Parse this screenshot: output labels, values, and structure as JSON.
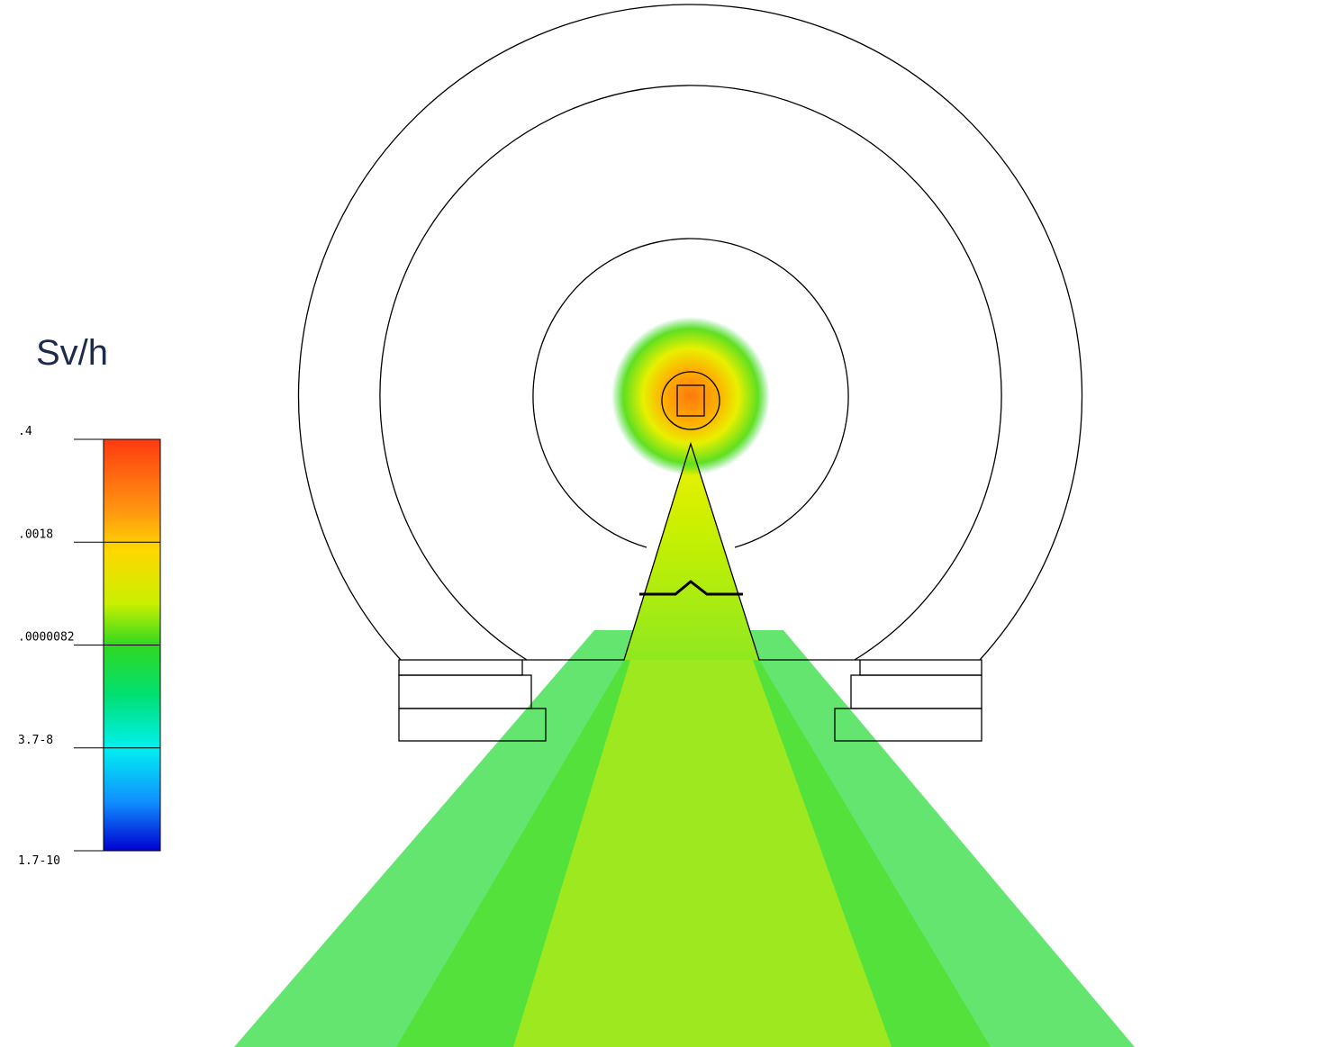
{
  "colorbar": {
    "unit": "Sv/h",
    "labels": [
      ".4",
      ".0018",
      ".0000082",
      "3.7-8",
      "1.7-10"
    ]
  }
}
